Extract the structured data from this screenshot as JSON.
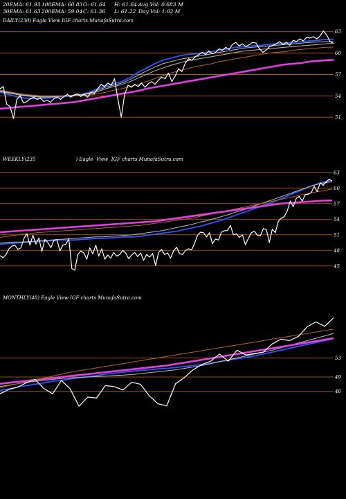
{
  "header": {
    "row1": [
      "20EMA: 61.93",
      "100EMA: 60.83",
      "O: 61.64",
      "H: 61.64",
      "Avg Vol: 0.683 M"
    ],
    "row2": [
      "30EMA: 61.63",
      "200EMA: 59.04",
      "C: 61.36",
      "L: 61.22",
      "Day Vol: 1.02 M"
    ]
  },
  "colors": {
    "background": "#000000",
    "price": "#ffffff",
    "grid": "#cc6a00",
    "ema_blue": "#2b55ff",
    "ema_magenta": "#e040e0",
    "ema_brown": "#b5651d",
    "ema_gray": "#bbbbbb"
  },
  "chart_data": [
    {
      "type": "line",
      "label": "DAILY(230) Eagle  View  IGF charts MunafaSutra.com",
      "y_ticks": [
        "63",
        "60",
        "57",
        "54",
        "51"
      ],
      "price": [
        55,
        55.3,
        52.8,
        52.5,
        50.8,
        53.5,
        54,
        53,
        53.2,
        53.6,
        53.8,
        53.5,
        53.7,
        53.2,
        53.4,
        53.1,
        53.6,
        53.8,
        53.5,
        53.9,
        54.2,
        53.8,
        54.1,
        54.3,
        53.9,
        54.2,
        53.8,
        54.5,
        54.3,
        55,
        55.6,
        55.3,
        55.8,
        55.5,
        56.4,
        53.5,
        51,
        54.2,
        55.5,
        55.2,
        55.6,
        55.3,
        55.8,
        55.2,
        55.7,
        56,
        55.6,
        56.2,
        56.6,
        56.4,
        57.2,
        56,
        56.8,
        57.8,
        57.4,
        58.6,
        59.2,
        59,
        59.5,
        59.8,
        60.1,
        59.8,
        60.3,
        59.9,
        60.1,
        60.6,
        60.4,
        60.8,
        60.5,
        61.2,
        61.5,
        61,
        61.3,
        60.9,
        61.2,
        61.5,
        61.4,
        60.6,
        60.1,
        60.4,
        60.9,
        61.1,
        61.3,
        61.6,
        61.2,
        61.5,
        61.1,
        61.8,
        61.6,
        62,
        61.7,
        62.2,
        62.1,
        62.3,
        62,
        62.4,
        63.1,
        62.5,
        61.6,
        61.36
      ],
      "series": [
        {
          "color": "blue",
          "values": [
            54.5,
            54.2,
            53.9,
            53.7,
            53.6,
            53.6,
            53.7,
            53.8,
            53.9,
            54,
            54.2,
            54.5,
            55,
            55.4,
            55.7,
            56,
            56.6,
            57.3,
            57.9,
            58.5,
            59,
            59.3,
            59.6,
            59.8,
            59.9,
            60,
            60.2,
            60.4,
            60.6,
            60.8,
            60.9,
            61,
            61.1,
            61.2,
            61.3,
            61.4,
            61.5,
            61.6,
            61.7,
            61.8,
            61.9,
            61.93
          ]
        },
        {
          "color": "gray",
          "values": [
            54.6,
            54.4,
            54.2,
            54,
            53.9,
            53.8,
            53.8,
            53.9,
            54,
            54.1,
            54.2,
            54.4,
            54.8,
            55.2,
            55.5,
            55.8,
            56.3,
            56.9,
            57.5,
            58,
            58.5,
            58.8,
            59.1,
            59.3,
            59.5,
            59.7,
            59.9,
            60.1,
            60.3,
            60.5,
            60.7,
            60.8,
            60.9,
            61,
            61.1,
            61.2,
            61.3,
            61.4,
            61.5,
            61.55,
            61.6,
            61.63
          ]
        },
        {
          "color": "gray",
          "values": [
            54.7,
            54.5,
            54.3,
            54.1,
            54,
            53.9,
            53.9,
            53.9,
            54,
            54,
            54.1,
            54.3,
            54.6,
            55,
            55.3,
            55.6,
            56,
            56.5,
            57,
            57.5,
            57.9,
            58.3,
            58.6,
            58.9,
            59.1,
            59.3,
            59.5,
            59.7,
            59.9,
            60.1,
            60.3,
            60.4,
            60.5,
            60.6,
            60.7,
            60.8,
            60.9,
            61,
            61.1,
            61.2,
            61.3,
            61.4
          ]
        },
        {
          "color": "brown",
          "values": [
            54.8,
            54.6,
            54.4,
            54.2,
            54.1,
            54,
            54,
            54,
            54,
            54,
            54,
            54.1,
            54.3,
            54.5,
            54.8,
            55,
            55.3,
            55.6,
            56,
            56.4,
            56.8,
            57.2,
            57.5,
            57.8,
            58.1,
            58.3,
            58.5,
            58.8,
            59,
            59.2,
            59.4,
            59.6,
            59.8,
            60,
            60.1,
            60.2,
            60.4,
            60.5,
            60.6,
            60.7,
            60.8,
            60.83
          ]
        },
        {
          "color": "magenta",
          "values": [
            52.2,
            52.3,
            52.4,
            52.5,
            52.6,
            52.7,
            52.8,
            52.9,
            53,
            53.1,
            53.3,
            53.5,
            53.7,
            53.9,
            54.1,
            54.3,
            54.5,
            54.7,
            55,
            55.2,
            55.4,
            55.6,
            55.8,
            56,
            56.2,
            56.4,
            56.6,
            56.8,
            57,
            57.2,
            57.4,
            57.6,
            57.8,
            58,
            58.2,
            58.4,
            58.5,
            58.6,
            58.8,
            58.9,
            59,
            59.04
          ]
        }
      ]
    },
    {
      "type": "line",
      "label": "WEEKLY(235                          ) Eagle  View  IGF charts MunafaSutra.com",
      "y_ticks": [
        "63",
        "60",
        "57",
        "54",
        "51",
        "48",
        "45"
      ],
      "price": [
        47,
        46.6,
        47.2,
        48.3,
        48.8,
        49,
        48.2,
        48.5,
        50.3,
        51.2,
        49,
        50.9,
        49.2,
        50.4,
        47.8,
        50.1,
        49.5,
        48.5,
        49.9,
        50.1,
        47.9,
        49,
        49.2,
        50.2,
        44.5,
        44.2,
        47.2,
        47.9,
        47.5,
        46.3,
        48.5,
        47.3,
        49,
        46.9,
        48.3,
        46.3,
        47.1,
        46.5,
        47.6,
        46.9,
        47.2,
        48,
        47.5,
        46.4,
        47.1,
        47.6,
        46.8,
        47.5,
        46.1,
        47.2,
        46.7,
        47.4,
        45.1,
        47.6,
        48.2,
        47.2,
        47.5,
        46.5,
        47.9,
        48.6,
        47.4,
        47.2,
        48,
        48.3,
        48.1,
        49.3,
        50.9,
        51.5,
        51.4,
        50.6,
        51.4,
        49.3,
        50.2,
        50,
        51.5,
        51.8,
        51.8,
        52.8,
        51,
        51.2,
        50.5,
        51,
        49.1,
        50.3,
        51.4,
        51.7,
        50.9,
        50.8,
        52.2,
        52,
        49.5,
        52.1,
        51.4,
        53.6,
        54.2,
        54.5,
        55.6,
        57.5,
        56.4,
        58,
        58.4,
        57.5,
        58.7,
        58.8,
        59.1,
        60.3,
        59.3,
        61,
        60.5,
        61.2,
        61.7,
        61.36
      ],
      "series": [
        {
          "color": "blue",
          "values": [
            49.2,
            49.3,
            49.4,
            49.5,
            49.6,
            49.7,
            49.8,
            49.9,
            50,
            50,
            50,
            50.1,
            50.2,
            50.3,
            50.3,
            50.4,
            50.5,
            50.6,
            50.6,
            50.7,
            50.9,
            51.1,
            51.3,
            51.5,
            51.7,
            52,
            52.3,
            52.6,
            53,
            53.4,
            53.8,
            54.3,
            54.8,
            55.3,
            55.8,
            56.3,
            56.8,
            57.3,
            57.9,
            58.5,
            59.1,
            59.7,
            60.3,
            60.8,
            61.2,
            61.5
          ]
        },
        {
          "color": "gray",
          "values": [
            49.4,
            49.5,
            49.6,
            49.6,
            49.7,
            49.8,
            49.9,
            50,
            50.1,
            50.2,
            50.3,
            50.4,
            50.5,
            50.6,
            50.6,
            50.7,
            50.8,
            50.9,
            51,
            51.2,
            51.4,
            51.6,
            51.8,
            52.1,
            52.4,
            52.7,
            53,
            53.4,
            53.7,
            54.1,
            54.5,
            54.9,
            55.4,
            55.8,
            56.3,
            56.8,
            57.3,
            57.8,
            58.3,
            58.8,
            59.3,
            59.8,
            60.3,
            60.7,
            61,
            61.2
          ]
        },
        {
          "color": "brown",
          "values": [
            50.5,
            50.7,
            50.9,
            51.1,
            51.2,
            51.4,
            51.5,
            51.6,
            51.7,
            51.8,
            51.9,
            52,
            52.1,
            52.2,
            52.3,
            52.4,
            52.5,
            52.6,
            52.7,
            52.8,
            53,
            53.2,
            53.4,
            53.6,
            53.8,
            54,
            54.2,
            54.5,
            54.8,
            55.1,
            55.4,
            55.7,
            56,
            56.3,
            56.6,
            56.9,
            57.2,
            57.5,
            57.8,
            58.1,
            58.4,
            58.7,
            59,
            59.3,
            59.5,
            59.8
          ]
        },
        {
          "color": "magenta",
          "values": [
            51.5,
            51.6,
            51.7,
            51.8,
            51.9,
            52,
            52.1,
            52.2,
            52.3,
            52.4,
            52.5,
            52.6,
            52.7,
            52.8,
            52.9,
            53,
            53.1,
            53.2,
            53.3,
            53.4,
            53.5,
            53.6,
            53.8,
            54,
            54.2,
            54.4,
            54.6,
            54.8,
            55,
            55.2,
            55.4,
            55.6,
            55.8,
            56,
            56.2,
            56.4,
            56.6,
            56.8,
            57,
            57.1,
            57.2,
            57.3,
            57.4,
            57.5,
            57.6,
            57.6
          ]
        }
      ]
    },
    {
      "type": "line",
      "label": "MONTHLY(48) Eagle  View  IGF charts MunafaSutra.com",
      "y_ticks": [
        "53",
        "49",
        "46"
      ],
      "price": [
        45.5,
        46.4,
        46.9,
        47.8,
        48.5,
        46.6,
        45.5,
        48.3,
        46.5,
        42.9,
        44.8,
        44.6,
        47.2,
        47,
        46.3,
        47.9,
        47.5,
        45.1,
        43.4,
        43,
        47.6,
        48.9,
        50.5,
        51.6,
        52.3,
        53.8,
        52.3,
        54.6,
        53.6,
        53.9,
        54.2,
        55.9,
        56.9,
        56.6,
        57.5,
        59.5,
        60.5,
        59.6,
        61.36
      ],
      "series": [
        {
          "color": "blue",
          "values": [
            46.2,
            46.5,
            46.9,
            47.2,
            47.5,
            47.8,
            48.1,
            48.3,
            48.6,
            48.9,
            49.1,
            49.3,
            49.6,
            49.8,
            50,
            50.2,
            50.4,
            50.5,
            50.7,
            50.8,
            51,
            51.2,
            51.4,
            51.6,
            51.9,
            52.2,
            52.5,
            52.8,
            53.1,
            53.4,
            53.8,
            54.2,
            54.6,
            55,
            55.4,
            55.8,
            56.2,
            56.6,
            57
          ]
        },
        {
          "color": "gray",
          "values": [
            47,
            47.3,
            47.6,
            47.9,
            48.1,
            48.3,
            48.5,
            48.7,
            48.8,
            48.9,
            49,
            49.1,
            49.2,
            49.3,
            49.4,
            49.5,
            49.7,
            49.9,
            50.1,
            50.3,
            50.5,
            50.8,
            51.1,
            51.4,
            51.8,
            52.2,
            52.6,
            53,
            53.4,
            53.8,
            54.2,
            54.6,
            55.1,
            55.6,
            56.1,
            56.6,
            57.1,
            57.6,
            58.1
          ]
        },
        {
          "color": "magenta",
          "values": [
            47.6,
            47.8,
            48,
            48.2,
            48.4,
            48.6,
            48.8,
            49,
            49.2,
            49.4,
            49.6,
            49.8,
            50,
            50.2,
            50.4,
            50.6,
            50.8,
            51,
            51.2,
            51.4,
            51.7,
            52,
            52.3,
            52.6,
            52.9,
            53.2,
            53.5,
            53.8,
            54.1,
            54.4,
            54.7,
            55,
            55.3,
            55.6,
            55.9,
            56.2,
            56.5,
            56.8,
            57.1
          ]
        },
        {
          "color": "brown",
          "values": [
            46.8,
            47.2,
            47.6,
            48,
            48.4,
            48.8,
            49.2,
            49.6,
            50,
            50.3,
            50.6,
            50.9,
            51.2,
            51.5,
            51.8,
            52.1,
            52.4,
            52.7,
            53,
            53.3,
            53.6,
            53.9,
            54.2,
            54.5,
            54.8,
            55.1,
            55.4,
            55.7,
            56,
            56.3,
            56.6,
            56.9,
            57.2,
            57.5,
            57.8,
            58.1,
            58.4,
            58.7,
            59
          ]
        }
      ]
    }
  ]
}
